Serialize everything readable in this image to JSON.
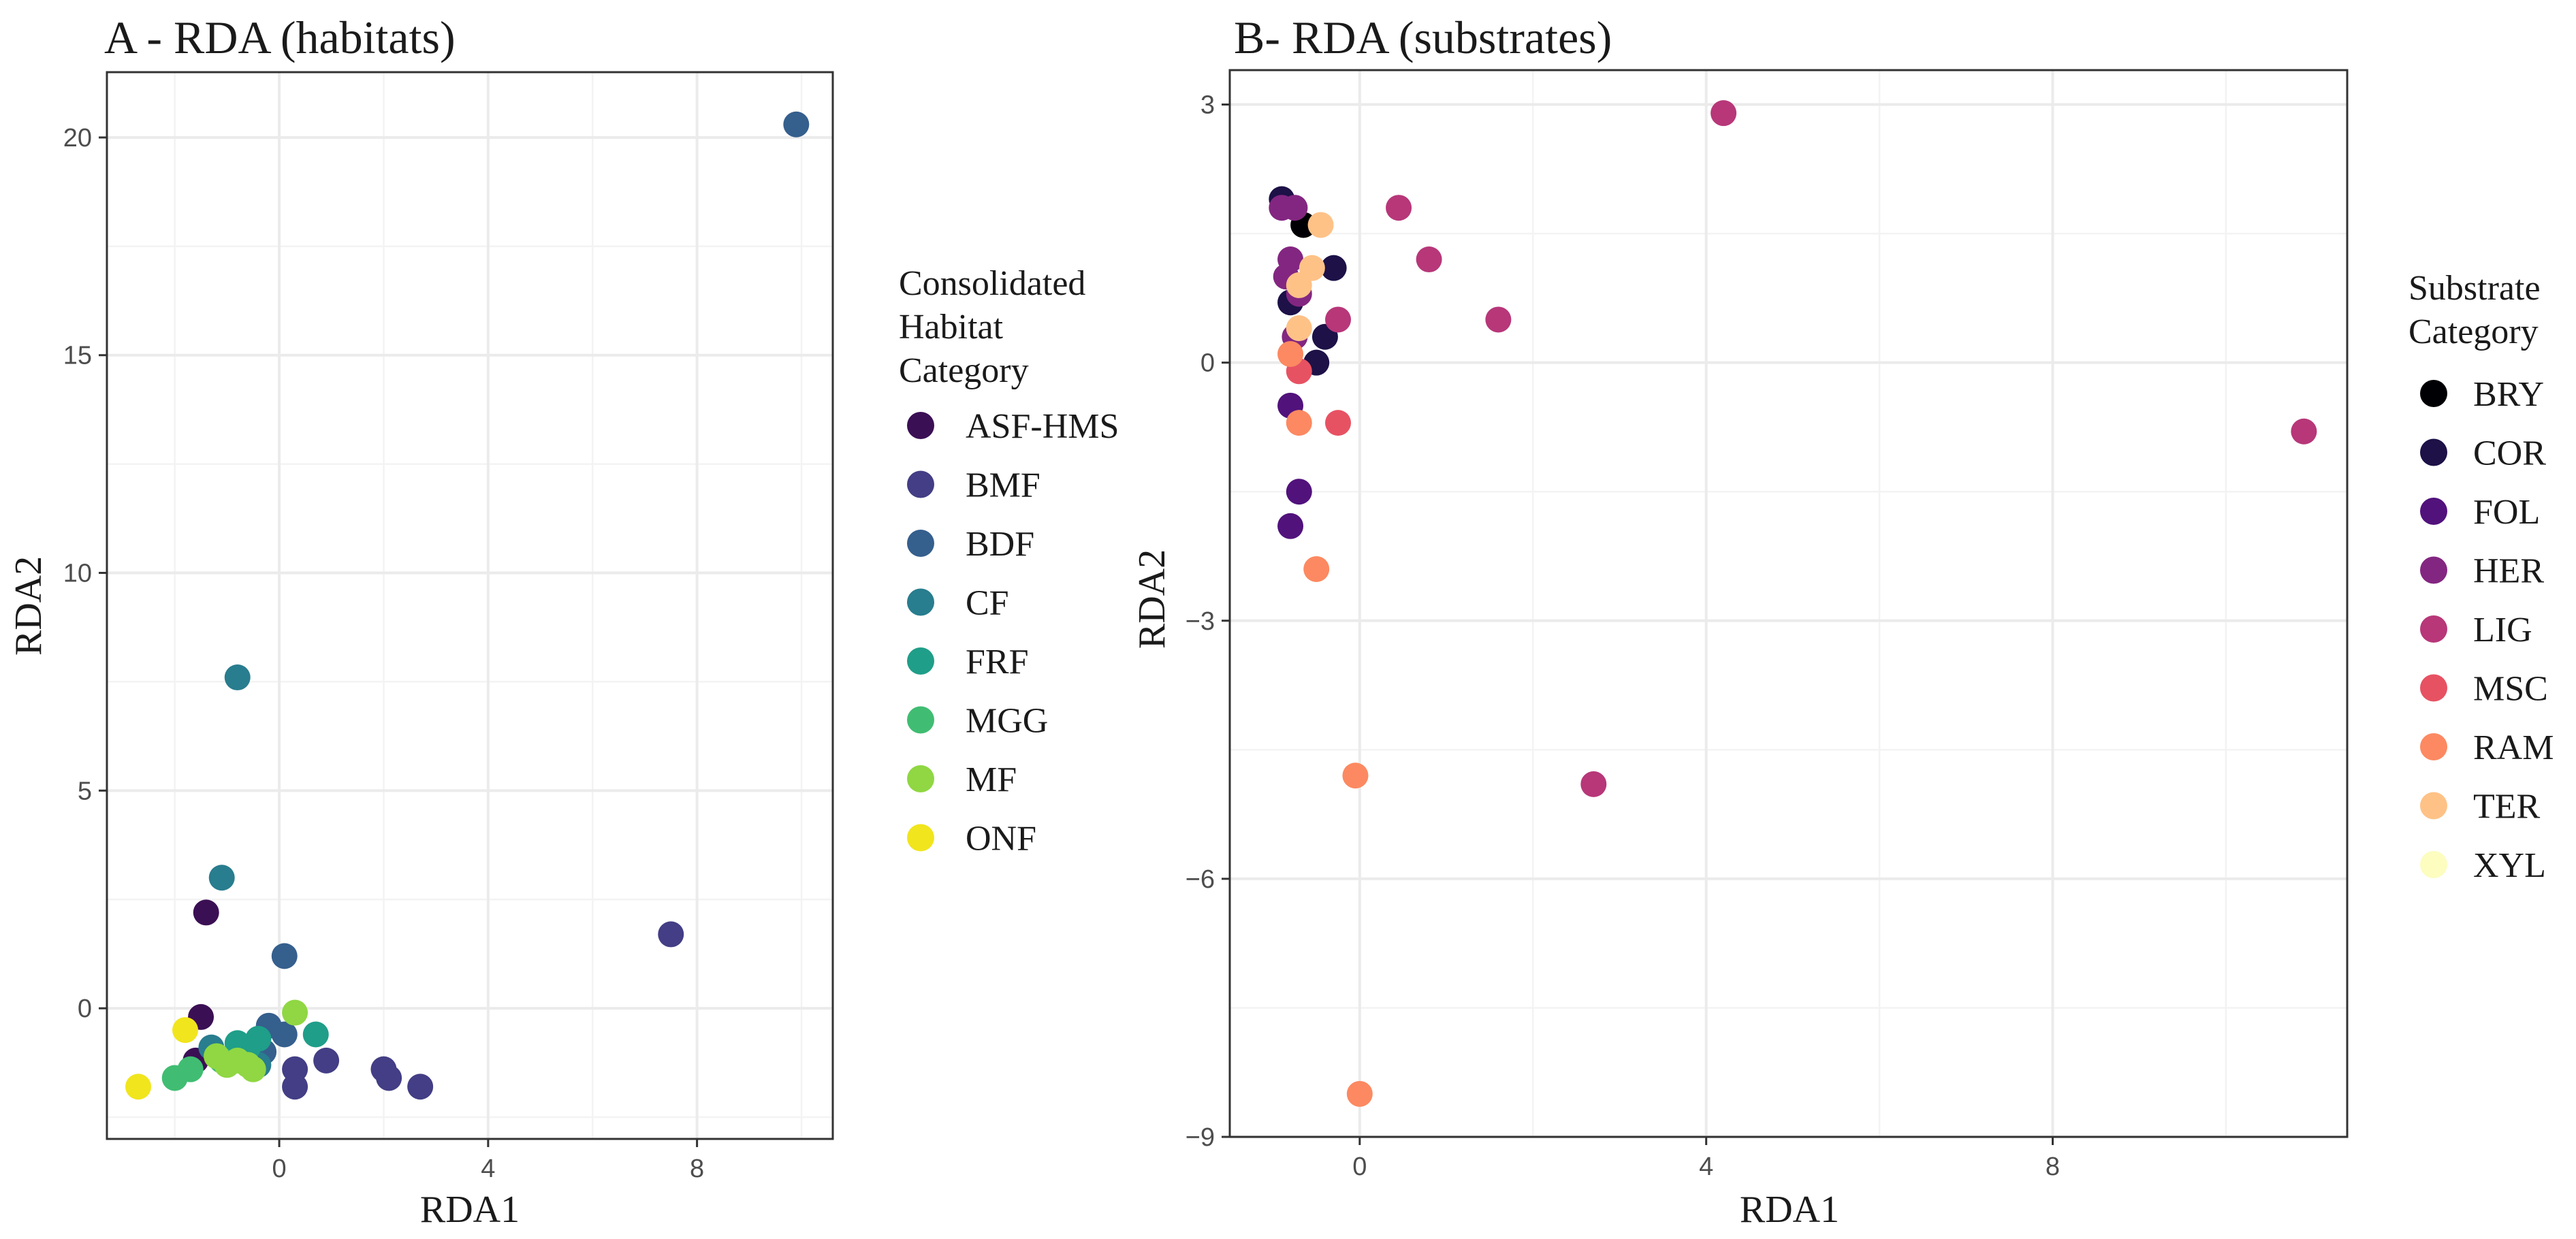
{
  "chart_data": [
    {
      "type": "scatter",
      "title": "A - RDA (habitats)",
      "xlabel": "RDA1",
      "ylabel": "RDA2",
      "xlim": [
        -3.3,
        10.6
      ],
      "ylim": [
        -3.0,
        21.5
      ],
      "xticks": [
        0,
        4,
        8
      ],
      "xtick_labels": [
        "0",
        "4",
        "8"
      ],
      "yticks": [
        0,
        5,
        10,
        15,
        20
      ],
      "ytick_labels": [
        "0",
        "5",
        "10",
        "15",
        "20"
      ],
      "legend": {
        "title_lines": [
          "Consolidated",
          "Habitat",
          "Category"
        ],
        "placement": "right",
        "entries": [
          {
            "label": "ASF-HMS",
            "color": "#3b0f54"
          },
          {
            "label": "BMF",
            "color": "#433e85"
          },
          {
            "label": "BDF",
            "color": "#355f8d"
          },
          {
            "label": "CF",
            "color": "#287d8e"
          },
          {
            "label": "FRF",
            "color": "#1f9e89"
          },
          {
            "label": "MGG",
            "color": "#40bd72"
          },
          {
            "label": "MF",
            "color": "#90d743"
          },
          {
            "label": "ONF",
            "color": "#f1e51d"
          }
        ]
      },
      "series": [
        {
          "name": "ASF-HMS",
          "color": "#3b0f54",
          "x": [
            -1.4,
            -1.5,
            -1.6
          ],
          "y": [
            2.2,
            -0.2,
            -1.2
          ]
        },
        {
          "name": "BMF",
          "color": "#433e85",
          "x": [
            7.5,
            0.3,
            0.3,
            0.9,
            2.0,
            2.1,
            2.7
          ],
          "y": [
            1.7,
            -1.4,
            -1.8,
            -1.2,
            -1.4,
            -1.6,
            -1.8
          ]
        },
        {
          "name": "BDF",
          "color": "#355f8d",
          "x": [
            9.9,
            0.1,
            0.1,
            -0.2,
            -0.4,
            -0.3,
            -0.5
          ],
          "y": [
            20.3,
            1.2,
            -0.6,
            -0.4,
            -0.7,
            -1.0,
            -1.3
          ]
        },
        {
          "name": "CF",
          "color": "#287d8e",
          "x": [
            -0.8,
            -1.1,
            -1.3,
            -0.6,
            -0.4
          ],
          "y": [
            7.6,
            3.0,
            -0.9,
            -1.2,
            -1.3
          ]
        },
        {
          "name": "FRF",
          "color": "#1f9e89",
          "x": [
            0.7,
            -0.4,
            -0.6,
            -0.8
          ],
          "y": [
            -0.6,
            -0.7,
            -0.9,
            -0.8
          ]
        },
        {
          "name": "MGG",
          "color": "#40bd72",
          "x": [
            -2.0,
            -1.7,
            -1.1
          ],
          "y": [
            -1.6,
            -1.4,
            -1.2
          ]
        },
        {
          "name": "MF",
          "color": "#90d743",
          "x": [
            0.3,
            -1.2,
            -1.0,
            -0.8,
            -0.6,
            -0.5
          ],
          "y": [
            -0.1,
            -1.1,
            -1.3,
            -1.2,
            -1.3,
            -1.4
          ]
        },
        {
          "name": "ONF",
          "color": "#f1e51d",
          "x": [
            -2.7,
            -1.8
          ],
          "y": [
            -1.8,
            -0.5
          ]
        }
      ]
    },
    {
      "type": "scatter",
      "title": "B- RDA (substrates)",
      "xlabel": "RDA1",
      "ylabel": "RDA2",
      "xlim": [
        -1.5,
        11.4
      ],
      "ylim": [
        -9.0,
        3.4
      ],
      "xticks": [
        0,
        4,
        8
      ],
      "xtick_labels": [
        "0",
        "4",
        "8"
      ],
      "yticks": [
        3,
        0,
        -3,
        -6,
        -9
      ],
      "ytick_labels": [
        "3",
        "0",
        "−3",
        "−6",
        "−9"
      ],
      "legend": {
        "title_lines": [
          "Substrate",
          "Category"
        ],
        "placement": "right",
        "entries": [
          {
            "label": "BRY",
            "color": "#000004"
          },
          {
            "label": "COR",
            "color": "#1d1147"
          },
          {
            "label": "FOL",
            "color": "#51127c"
          },
          {
            "label": "HER",
            "color": "#832681"
          },
          {
            "label": "LIG",
            "color": "#b73779"
          },
          {
            "label": "MSC",
            "color": "#e75263"
          },
          {
            "label": "RAM",
            "color": "#fc8961"
          },
          {
            "label": "TER",
            "color": "#fec287"
          },
          {
            "label": "XYL",
            "color": "#fcfdbf"
          }
        ]
      },
      "series": [
        {
          "name": "BRY",
          "color": "#000004",
          "x": [
            -0.65
          ],
          "y": [
            1.6
          ]
        },
        {
          "name": "COR",
          "color": "#1d1147",
          "x": [
            -0.9,
            -0.3,
            -0.8,
            -0.4,
            -0.5
          ],
          "y": [
            1.9,
            1.1,
            0.7,
            0.3,
            0.0
          ]
        },
        {
          "name": "FOL",
          "color": "#51127c",
          "x": [
            -0.8,
            -0.7,
            -0.8
          ],
          "y": [
            -0.5,
            -1.5,
            -1.9
          ]
        },
        {
          "name": "HER",
          "color": "#832681",
          "x": [
            -0.9,
            -0.75,
            -0.8,
            -0.85,
            -0.7,
            -0.75
          ],
          "y": [
            1.8,
            1.8,
            1.2,
            1.0,
            0.8,
            0.3
          ]
        },
        {
          "name": "LIG",
          "color": "#b73779",
          "x": [
            4.2,
            0.45,
            0.8,
            1.6,
            -0.25,
            10.9,
            2.7
          ],
          "y": [
            2.9,
            1.8,
            1.2,
            0.5,
            0.5,
            -0.8,
            -4.9
          ]
        },
        {
          "name": "MSC",
          "color": "#e75263",
          "x": [
            -0.7,
            -0.25
          ],
          "y": [
            -0.1,
            -0.7
          ]
        },
        {
          "name": "RAM",
          "color": "#fc8961",
          "x": [
            -0.7,
            -0.5,
            -0.05,
            0.0,
            -0.8
          ],
          "y": [
            -0.7,
            -2.4,
            -4.8,
            -8.5,
            0.1
          ]
        },
        {
          "name": "TER",
          "color": "#fec287",
          "x": [
            -0.45,
            -0.55,
            -0.7,
            -0.7
          ],
          "y": [
            1.6,
            1.1,
            0.9,
            0.4
          ]
        },
        {
          "name": "XYL",
          "color": "#fcfdbf",
          "x": [],
          "y": []
        }
      ]
    }
  ]
}
